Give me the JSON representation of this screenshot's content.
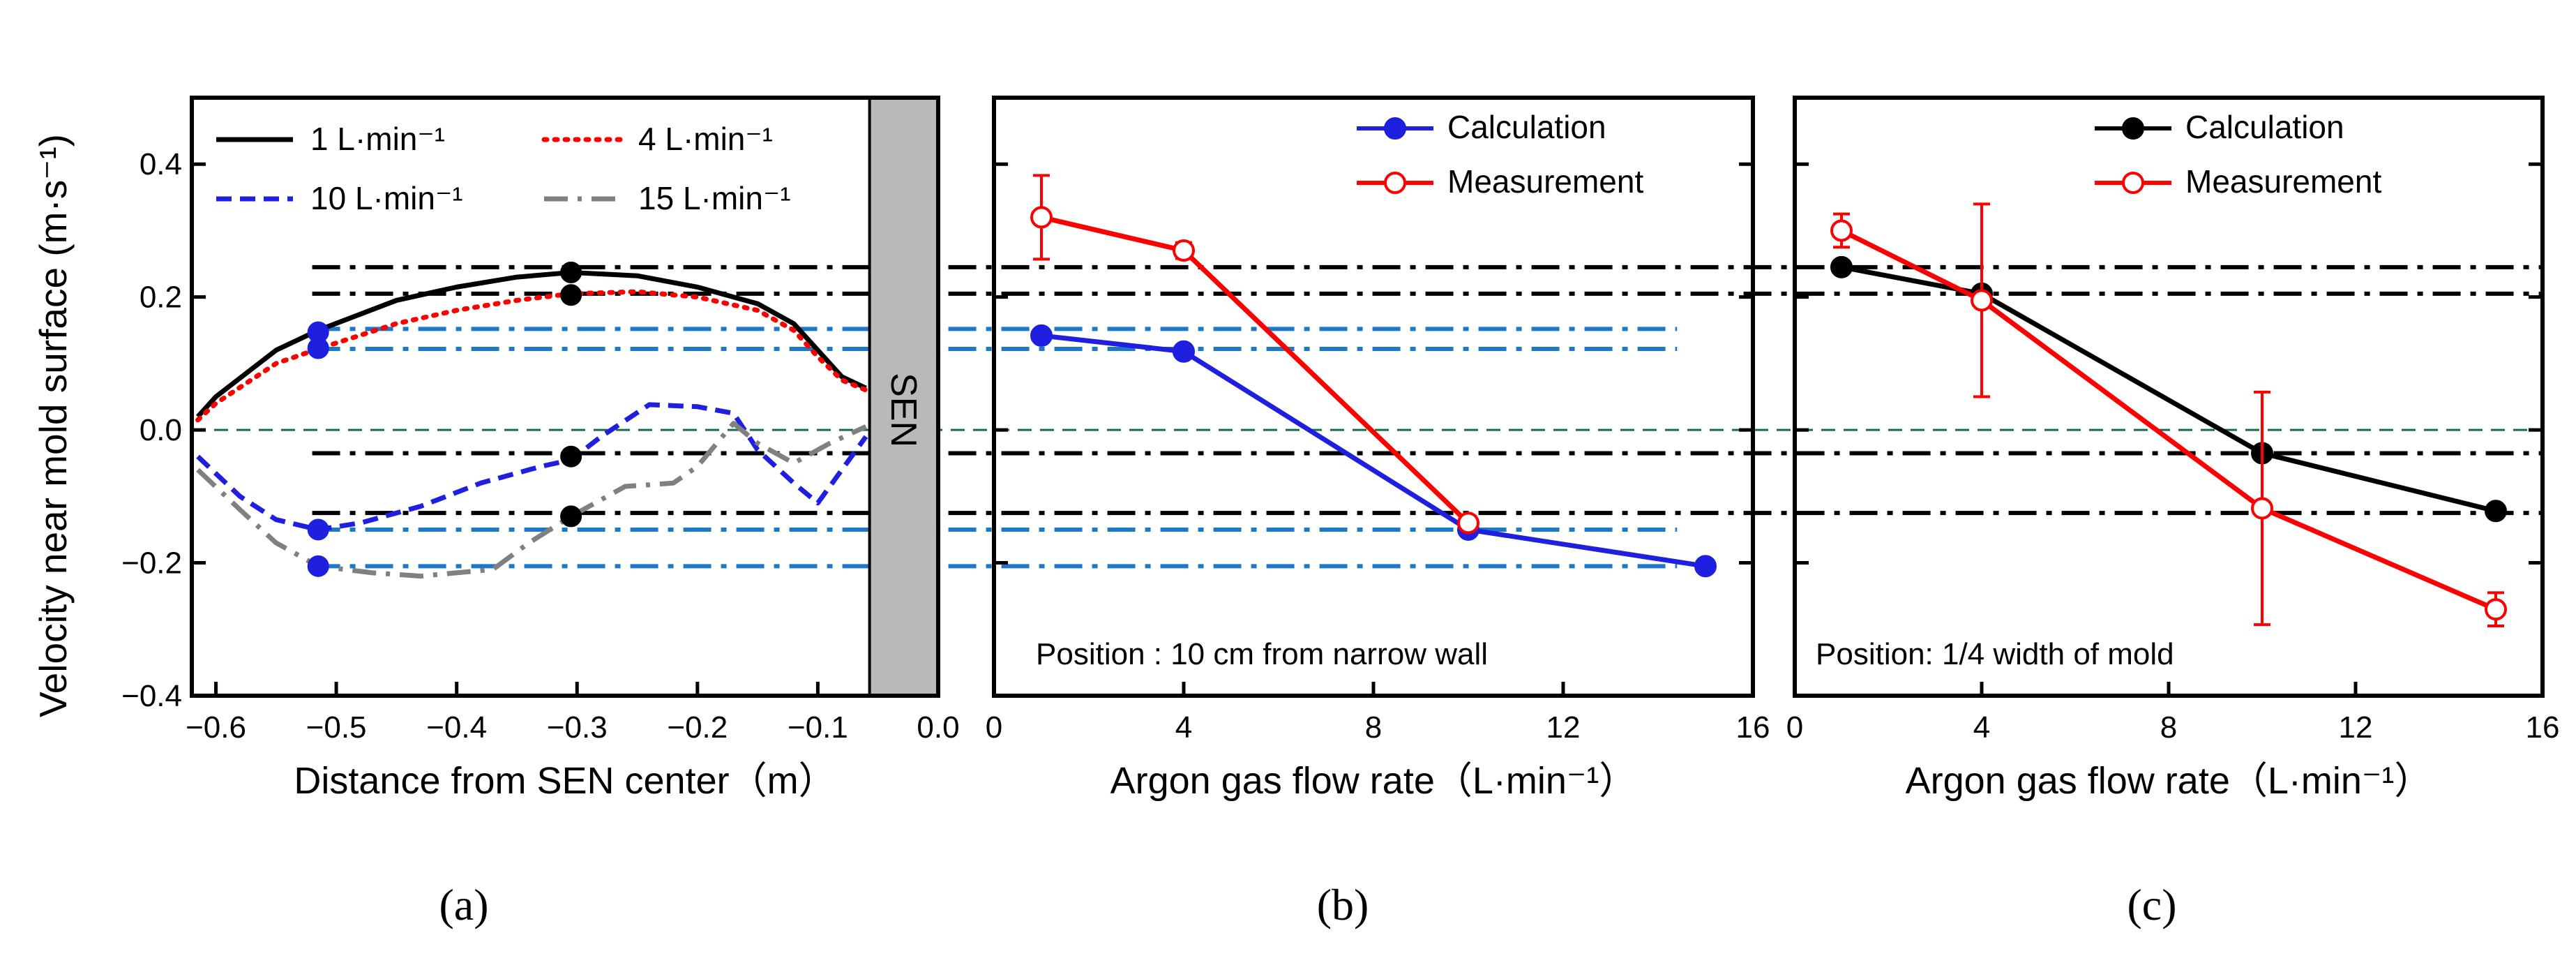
{
  "chart_data": [
    {
      "id": "a",
      "type": "line",
      "ylabel": "Velocity near mold surface (m·s⁻¹)",
      "xlabel": "Distance from SEN center（m）",
      "xlim": [
        -0.62,
        0.0
      ],
      "ylim": [
        -0.4,
        0.5
      ],
      "xticks": [
        -0.6,
        -0.5,
        -0.4,
        -0.3,
        -0.2,
        -0.1,
        0.0
      ],
      "xtick_labels": [
        "−0.6",
        "−0.5",
        "−0.4",
        "−0.3",
        "−0.2",
        "−0.1",
        "0.0"
      ],
      "yticks": [
        -0.4,
        -0.2,
        0.0,
        0.2,
        0.4
      ],
      "ytick_labels": [
        "−0.4",
        "−0.2",
        "0.0",
        "0.2",
        "0.4"
      ],
      "sen_label": "SEN",
      "sen_range": [
        -0.057,
        0.0
      ],
      "legend": [
        {
          "label": "1 L·min⁻¹",
          "color": "#000000",
          "style": "solid"
        },
        {
          "label": "4 L·min⁻¹",
          "color": "#ff0000",
          "style": "dotted"
        },
        {
          "label": "10 L·min⁻¹",
          "color": "#1f1fe0",
          "style": "dashed"
        },
        {
          "label": "15 L·min⁻¹",
          "color": "#808080",
          "style": "dashdot"
        }
      ],
      "series": [
        {
          "name": "1 L·min⁻¹",
          "color": "#000000",
          "style": "solid",
          "x": [
            -0.615,
            -0.6,
            -0.55,
            -0.515,
            -0.45,
            -0.4,
            -0.35,
            -0.305,
            -0.25,
            -0.2,
            -0.15,
            -0.12,
            -0.1,
            -0.08,
            -0.06
          ],
          "y": [
            0.02,
            0.05,
            0.12,
            0.15,
            0.195,
            0.215,
            0.23,
            0.237,
            0.232,
            0.215,
            0.19,
            0.16,
            0.12,
            0.08,
            0.063
          ]
        },
        {
          "name": "4 L·min⁻¹",
          "color": "#ff0000",
          "style": "dotted",
          "x": [
            -0.615,
            -0.6,
            -0.55,
            -0.515,
            -0.45,
            -0.4,
            -0.35,
            -0.305,
            -0.25,
            -0.2,
            -0.15,
            -0.12,
            -0.1,
            -0.08,
            -0.06
          ],
          "y": [
            0.015,
            0.04,
            0.1,
            0.122,
            0.16,
            0.18,
            0.195,
            0.205,
            0.208,
            0.2,
            0.18,
            0.15,
            0.11,
            0.075,
            0.06
          ]
        },
        {
          "name": "10 L·min⁻¹",
          "color": "#1f1fe0",
          "style": "dashed",
          "x": [
            -0.615,
            -0.58,
            -0.55,
            -0.515,
            -0.48,
            -0.43,
            -0.38,
            -0.33,
            -0.305,
            -0.28,
            -0.24,
            -0.2,
            -0.17,
            -0.15,
            -0.12,
            -0.1,
            -0.08,
            -0.06
          ],
          "y": [
            -0.04,
            -0.1,
            -0.135,
            -0.15,
            -0.14,
            -0.115,
            -0.08,
            -0.055,
            -0.045,
            -0.01,
            0.038,
            0.035,
            0.025,
            -0.03,
            -0.08,
            -0.11,
            -0.06,
            -0.01
          ]
        },
        {
          "name": "15 L·min⁻¹",
          "color": "#808080",
          "style": "dashdot",
          "x": [
            -0.615,
            -0.58,
            -0.55,
            -0.515,
            -0.47,
            -0.43,
            -0.37,
            -0.34,
            -0.305,
            -0.26,
            -0.22,
            -0.2,
            -0.17,
            -0.15,
            -0.12,
            -0.09,
            -0.06
          ],
          "y": [
            -0.06,
            -0.12,
            -0.17,
            -0.205,
            -0.215,
            -0.22,
            -0.21,
            -0.17,
            -0.13,
            -0.085,
            -0.08,
            -0.055,
            0.01,
            -0.02,
            -0.05,
            -0.02,
            0.005
          ]
        }
      ],
      "markers": [
        {
          "x": -0.515,
          "y": 0.147,
          "color": "#1f1fe0"
        },
        {
          "x": -0.515,
          "y": 0.123,
          "color": "#1f1fe0"
        },
        {
          "x": -0.515,
          "y": -0.15,
          "color": "#1f1fe0"
        },
        {
          "x": -0.515,
          "y": -0.205,
          "color": "#1f1fe0"
        },
        {
          "x": -0.305,
          "y": 0.237,
          "color": "#000000"
        },
        {
          "x": -0.305,
          "y": 0.203,
          "color": "#000000"
        },
        {
          "x": -0.305,
          "y": -0.04,
          "color": "#000000"
        },
        {
          "x": -0.305,
          "y": -0.13,
          "color": "#000000"
        }
      ]
    },
    {
      "id": "b",
      "type": "line",
      "xlabel": "Argon gas flow rate（L·min⁻¹）",
      "xlim": [
        0,
        16
      ],
      "ylim": [
        -0.4,
        0.5
      ],
      "xticks": [
        0,
        4,
        8,
        12,
        16
      ],
      "xtick_labels": [
        "0",
        "4",
        "8",
        "12",
        "16"
      ],
      "yticks": [
        -0.4,
        -0.2,
        0.0,
        0.2,
        0.4
      ],
      "annotation": "Position : 10 cm from narrow wall",
      "legend": [
        {
          "label": "Calculation",
          "color": "#1f1fe0",
          "marker": "filled"
        },
        {
          "label": "Measurement",
          "color": "#ff0000",
          "marker": "open"
        }
      ],
      "series": [
        {
          "name": "Calculation",
          "color": "#1f1fe0",
          "marker": "filled",
          "x": [
            1,
            4,
            10,
            15
          ],
          "y": [
            0.142,
            0.118,
            -0.15,
            -0.205
          ]
        },
        {
          "name": "Measurement",
          "color": "#ff0000",
          "marker": "open",
          "x": [
            1,
            4,
            10
          ],
          "y": [
            0.32,
            0.27,
            -0.14
          ],
          "yerr": [
            0.063,
            0.012,
            0.01
          ]
        }
      ]
    },
    {
      "id": "c",
      "type": "line",
      "xlabel": "Argon gas flow rate（L·min⁻¹）",
      "xlim": [
        0,
        16
      ],
      "ylim": [
        -0.4,
        0.5
      ],
      "xticks": [
        0,
        4,
        8,
        12,
        16
      ],
      "xtick_labels": [
        "0",
        "4",
        "8",
        "12",
        "16"
      ],
      "yticks": [
        -0.4,
        -0.2,
        0.0,
        0.2,
        0.4
      ],
      "annotation": "Position: 1/4 width of mold",
      "legend": [
        {
          "label": "Calculation",
          "color": "#000000",
          "marker": "filled"
        },
        {
          "label": "Measurement",
          "color": "#ff0000",
          "marker": "open"
        }
      ],
      "series": [
        {
          "name": "Calculation",
          "color": "#000000",
          "marker": "filled",
          "x": [
            1,
            4,
            10,
            15
          ],
          "y": [
            0.245,
            0.205,
            -0.035,
            -0.122
          ]
        },
        {
          "name": "Measurement",
          "color": "#ff0000",
          "marker": "open",
          "x": [
            1,
            4,
            10,
            15
          ],
          "y": [
            0.3,
            0.195,
            -0.118,
            -0.27
          ],
          "yerr": [
            0.025,
            0.145,
            0.175,
            0.025
          ]
        }
      ]
    }
  ],
  "guide_lines": [
    {
      "y": 0.245,
      "color": "#000000",
      "from": "a",
      "to": "c"
    },
    {
      "y": 0.205,
      "color": "#000000",
      "from": "a",
      "to": "c"
    },
    {
      "y": -0.035,
      "color": "#000000",
      "from": "a",
      "to": "c"
    },
    {
      "y": -0.125,
      "color": "#000000",
      "from": "a",
      "to": "c"
    },
    {
      "y": 0.152,
      "color": "#1e78c8",
      "from": "a",
      "to": "b"
    },
    {
      "y": 0.122,
      "color": "#1e78c8",
      "from": "a",
      "to": "b"
    },
    {
      "y": -0.15,
      "color": "#1e78c8",
      "from": "a",
      "to": "b"
    },
    {
      "y": -0.205,
      "color": "#1e78c8",
      "from": "a",
      "to": "b"
    },
    {
      "y": 0.0,
      "color": "#1a6e4a",
      "from": "a",
      "to": "c"
    }
  ],
  "captions": [
    "(a)",
    "(b)",
    "(c)"
  ]
}
